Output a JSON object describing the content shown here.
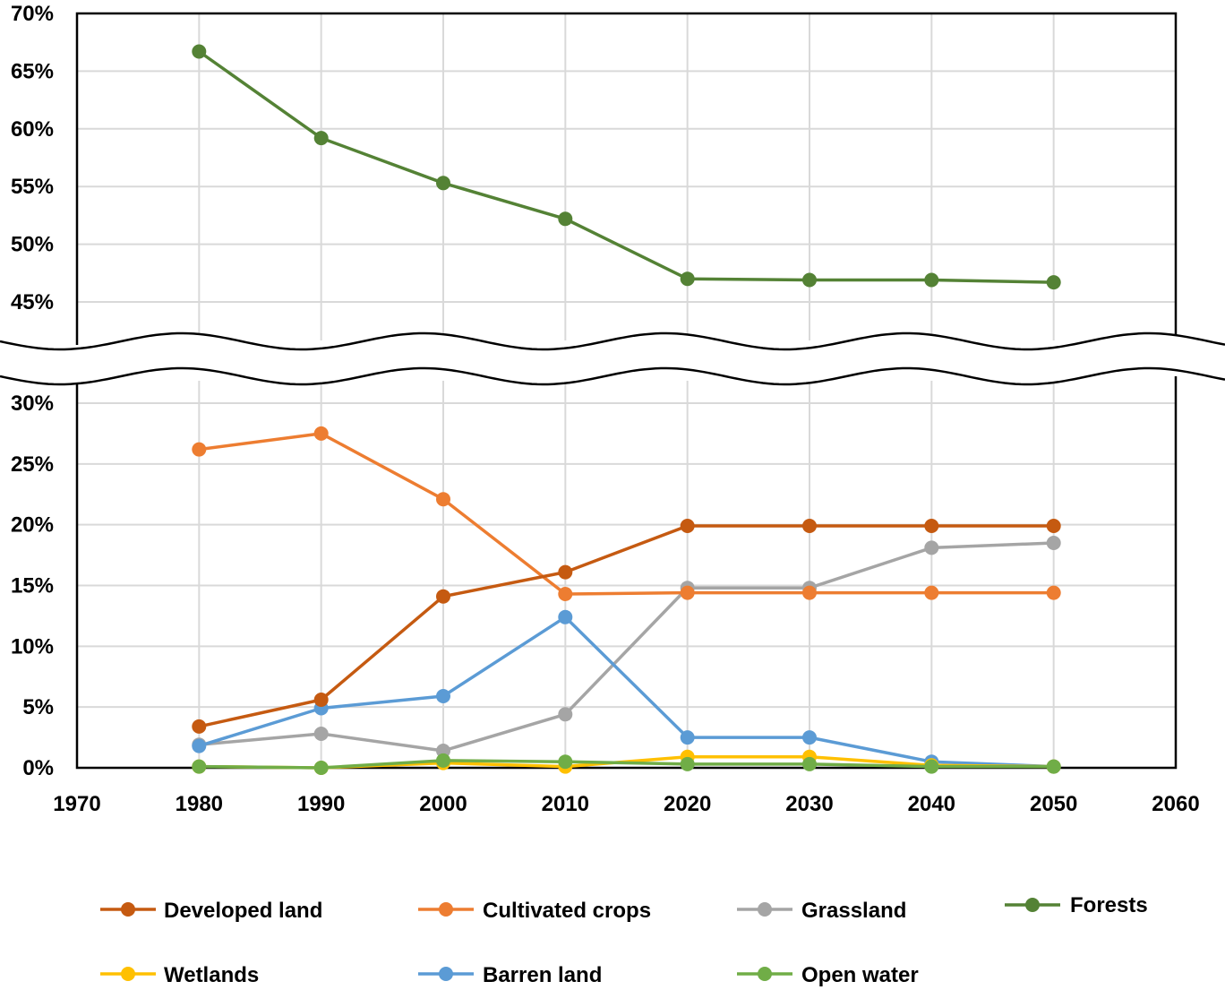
{
  "chart_data": {
    "type": "line",
    "broken_y_axis": true,
    "xlim": [
      1970,
      2060
    ],
    "x_ticks": [
      "1970",
      "1980",
      "1990",
      "2000",
      "2010",
      "2020",
      "2030",
      "2040",
      "2050",
      "2060"
    ],
    "y_upper": {
      "ylim": [
        0.45,
        0.7
      ],
      "ticks": [
        "70%",
        "65%",
        "60%",
        "55%",
        "50%",
        "45%"
      ]
    },
    "y_lower": {
      "ylim": [
        0.0,
        0.3
      ],
      "ticks": [
        "30%",
        "25%",
        "20%",
        "15%",
        "10%",
        "5%",
        "0%"
      ]
    },
    "grid": true,
    "legend_position": "bottom",
    "x": [
      1980,
      1990,
      2000,
      2010,
      2020,
      2030,
      2040,
      2050
    ],
    "series": [
      {
        "name": "Developed land",
        "color": "#c55a11",
        "panel": "lower",
        "values": [
          0.034,
          0.056,
          0.141,
          0.161,
          0.199,
          0.199,
          0.199,
          0.199
        ]
      },
      {
        "name": "Cultivated crops",
        "color": "#ed7d31",
        "panel": "lower",
        "values": [
          0.262,
          0.275,
          0.221,
          0.143,
          0.144,
          0.144,
          0.144,
          0.144
        ]
      },
      {
        "name": "Grassland",
        "color": "#a5a5a5",
        "panel": "lower",
        "values": [
          0.019,
          0.028,
          0.014,
          0.044,
          0.148,
          0.148,
          0.181,
          0.185
        ]
      },
      {
        "name": "Forests",
        "color": "#548235",
        "panel": "upper",
        "values": [
          0.667,
          0.592,
          0.553,
          0.522,
          0.47,
          0.469,
          0.469,
          0.467
        ]
      },
      {
        "name": "Wetlands",
        "color": "#ffc000",
        "panel": "lower",
        "values": [
          0.001,
          0.0,
          0.004,
          0.001,
          0.009,
          0.009,
          0.002,
          0.001
        ]
      },
      {
        "name": "Barren land",
        "color": "#5b9bd5",
        "panel": "lower",
        "values": [
          0.018,
          0.049,
          0.059,
          0.124,
          0.025,
          0.025,
          0.005,
          0.001
        ]
      },
      {
        "name": "Open water",
        "color": "#70ad47",
        "panel": "lower",
        "values": [
          0.001,
          0.0,
          0.006,
          0.005,
          0.003,
          0.003,
          0.001,
          0.001
        ]
      }
    ]
  }
}
